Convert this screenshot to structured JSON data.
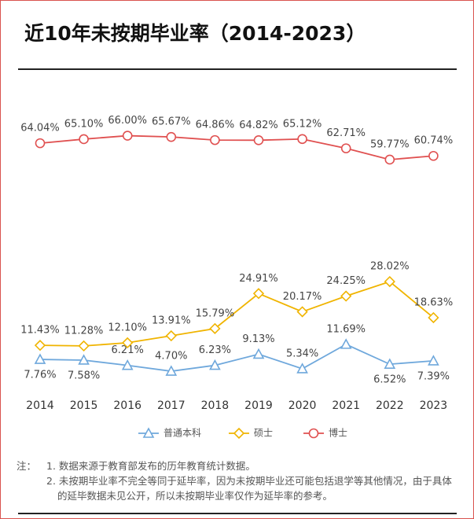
{
  "chart_data": {
    "type": "line",
    "title": "近10年未按期毕业率（2014-2023）",
    "categories": [
      "2014",
      "2015",
      "2016",
      "2017",
      "2018",
      "2019",
      "2020",
      "2021",
      "2022",
      "2023"
    ],
    "series": [
      {
        "name": "普通本科",
        "color": "#6fa8dc",
        "marker": "triangle",
        "values": [
          7.76,
          7.58,
          6.21,
          4.7,
          6.23,
          9.13,
          5.34,
          11.69,
          6.52,
          7.39
        ],
        "value_labels": [
          "7.76%",
          "7.58%",
          "6.21%",
          "4.70%",
          "6.23%",
          "9.13%",
          "5.34%",
          "11.69%",
          "6.52%",
          "7.39%"
        ]
      },
      {
        "name": "硕士",
        "color": "#f0b400",
        "marker": "diamond",
        "values": [
          11.43,
          11.28,
          12.1,
          13.91,
          15.79,
          24.91,
          20.17,
          24.25,
          28.02,
          18.63
        ],
        "value_labels": [
          "11.43%",
          "11.28%",
          "12.10%",
          "13.91%",
          "15.79%",
          "24.91%",
          "20.17%",
          "24.25%",
          "28.02%",
          "18.63%"
        ]
      },
      {
        "name": "博士",
        "color": "#e05050",
        "marker": "circle",
        "values": [
          64.04,
          65.1,
          66.0,
          65.67,
          64.86,
          64.82,
          65.12,
          62.71,
          59.77,
          60.74
        ],
        "value_labels": [
          "64.04%",
          "65.10%",
          "66.00%",
          "65.67%",
          "64.86%",
          "64.82%",
          "65.12%",
          "62.71%",
          "59.77%",
          "60.74%"
        ]
      }
    ],
    "ylim": [
      0,
      70
    ],
    "note_title": "注：",
    "notes": [
      "1. 数据来源于教育部发布的历年教育统计数据。",
      "2. 未按期毕业率不完全等同于延毕率，因为未按期毕业还可能包括退学等其他情况，由于具体的延毕数据未见公开，所以未按期毕业率仅作为延毕率的参考。"
    ]
  }
}
